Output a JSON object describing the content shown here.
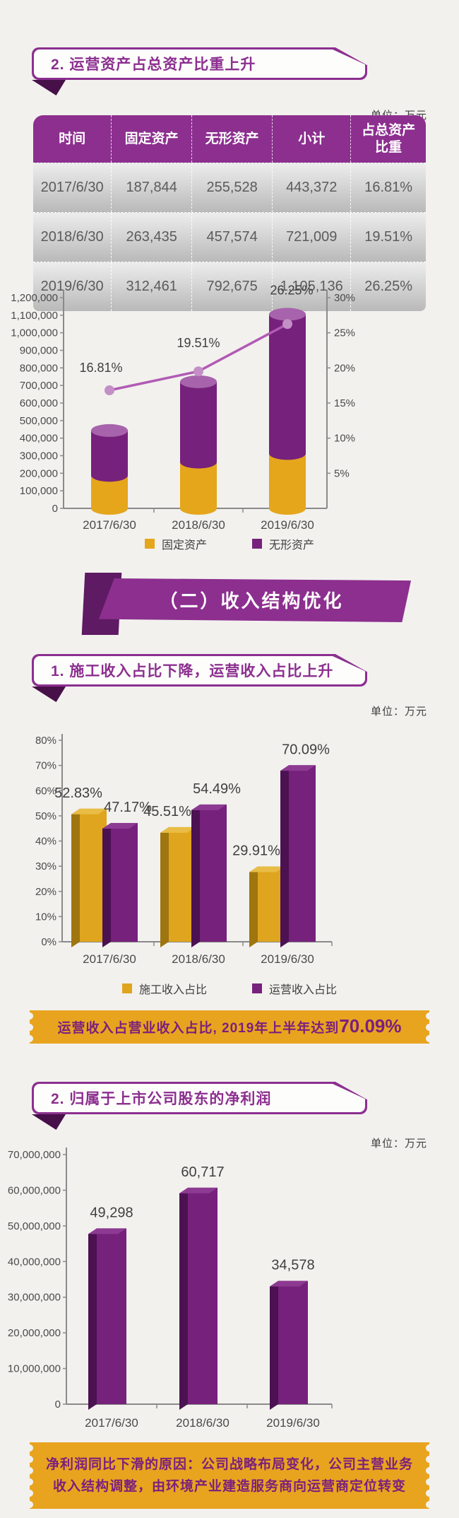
{
  "unit_label": "单位：万元",
  "colors": {
    "purple": "#8C2F8F",
    "purple_bar": "#76217C",
    "purple_bar_dark": "#4B1151",
    "purple_bar_top": "#8D3A92",
    "gold": "#E5A61C",
    "gold_dark": "#9E750E",
    "gold_top": "#E8BC45",
    "line": "#B25AB5",
    "marker": "#C38FC6",
    "cylinder_cap": "#A763AB",
    "stamp_bg": "#E8A41F",
    "stamp_text": "#7B1F7E",
    "axis": "#8A8A8A",
    "label_ink": "#4A4A4A"
  },
  "sections": {
    "asset": {
      "title": "2. 运营资产占总资产比重上升"
    },
    "income_header": {
      "title": "（二）收入结构优化"
    },
    "income": {
      "title": "1. 施工收入占比下降，运营收入占比上升"
    },
    "profit": {
      "title": "2. 归属于上市公司股东的净利润"
    }
  },
  "table": {
    "columns": [
      "时间",
      "固定资产",
      "无形资产",
      "小计",
      "占总资产比重"
    ],
    "rows": [
      [
        "2017/6/30",
        "187,844",
        "255,528",
        "443,372",
        "16.81%"
      ],
      [
        "2018/6/30",
        "263,435",
        "457,574",
        "721,009",
        "19.51%"
      ],
      [
        "2019/6/30",
        "312,461",
        "792,675",
        "1,105,136",
        "26.25%"
      ]
    ]
  },
  "callouts": {
    "income_note": {
      "text": "运营收入占营业收入占比, 2019年上半年达到",
      "highlight": "70.09%"
    },
    "profit_note_lines": [
      "净利润同比下滑的原因：公司战略布局变化，公司主营业务",
      "收入结构调整，由环境产业建造服务商向运营商定位转变"
    ]
  },
  "chart_data": [
    {
      "id": "asset-combo",
      "type": "bar",
      "subtype": "stacked-cylinder-with-line",
      "categories": [
        "2017/6/30",
        "2018/6/30",
        "2019/6/30"
      ],
      "series": [
        {
          "name": "固定资产",
          "color": "#E5A61C",
          "values": [
            187844,
            263435,
            312461
          ]
        },
        {
          "name": "无形资产",
          "color": "#76217C",
          "values": [
            255528,
            457574,
            792675
          ]
        }
      ],
      "line": {
        "name": "占总资产比重",
        "color": "#B25AB5",
        "values_pct": [
          16.81,
          19.51,
          26.25
        ],
        "labels": [
          "16.81%",
          "19.51%",
          "26.25%"
        ]
      },
      "y_left": {
        "min": 0,
        "max": 1200000,
        "step": 100000
      },
      "y_right": {
        "min": 0,
        "max": 30,
        "step": 5,
        "unit": "%"
      },
      "legend": [
        "固定资产",
        "无形资产"
      ],
      "legend_position": "bottom",
      "grid": false
    },
    {
      "id": "income-grouped",
      "type": "bar",
      "subtype": "grouped-3d",
      "categories": [
        "2017/6/30",
        "2018/6/30",
        "2019/6/30"
      ],
      "series": [
        {
          "name": "施工收入占比",
          "color": "#DFA51E",
          "values_pct": [
            52.83,
            45.51,
            29.91
          ],
          "labels": [
            "52.83%",
            "45.51%",
            "29.91%"
          ]
        },
        {
          "name": "运营收入占比",
          "color": "#76217C",
          "values_pct": [
            47.17,
            54.49,
            70.09
          ],
          "labels": [
            "47.17%",
            "54.49%",
            "70.09%"
          ]
        }
      ],
      "y": {
        "min": 0,
        "max": 80,
        "step": 10,
        "unit": "%"
      },
      "legend": [
        "施工收入占比",
        "运营收入占比"
      ],
      "legend_position": "bottom",
      "grid": false
    },
    {
      "id": "profit-bars",
      "type": "bar",
      "subtype": "single-3d",
      "categories": [
        "2017/6/30",
        "2018/6/30",
        "2019/6/30"
      ],
      "series": [
        {
          "name": "归属于上市公司股东的净利润",
          "color": "#76217C",
          "values": [
            49298,
            60717,
            34578
          ],
          "labels": [
            "49,298",
            "60,717",
            "34,578"
          ]
        }
      ],
      "y": {
        "min": 0,
        "max": 70000000,
        "step": 10000000
      },
      "plot_scale_factor": 1000,
      "grid": false
    }
  ]
}
